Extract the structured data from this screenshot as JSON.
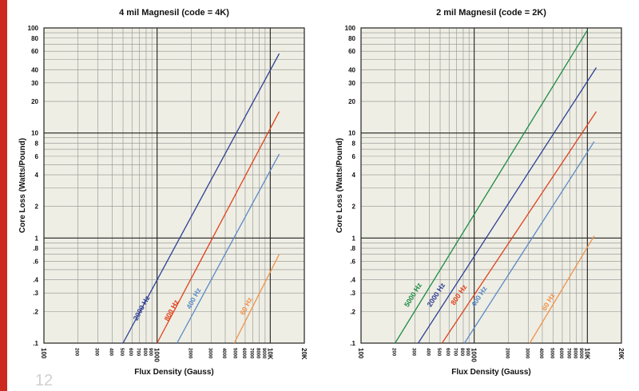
{
  "page": {
    "page_number": "12"
  },
  "colors": {
    "accent": "#cc2a1e",
    "plot_bg": "#eeeee4"
  },
  "chart_data": [
    {
      "type": "line",
      "title": "4 mil Magnesil (code = 4K)",
      "xlabel": "Flux Density (Gauss)",
      "ylabel": "Core Loss (Watts/Pound)",
      "x_scale": "log",
      "y_scale": "log",
      "xlim": [
        100,
        20000
      ],
      "ylim": [
        0.1,
        100
      ],
      "x_ticks": [
        {
          "v": 100,
          "t": "100"
        },
        {
          "v": 200,
          "t": "200"
        },
        {
          "v": 300,
          "t": "300"
        },
        {
          "v": 400,
          "t": "400"
        },
        {
          "v": 500,
          "t": "500"
        },
        {
          "v": 600,
          "t": "600"
        },
        {
          "v": 700,
          "t": "700"
        },
        {
          "v": 800,
          "t": "800"
        },
        {
          "v": 900,
          "t": "900"
        },
        {
          "v": 1000,
          "t": "1000"
        },
        {
          "v": 2000,
          "t": "2000"
        },
        {
          "v": 3000,
          "t": "3000"
        },
        {
          "v": 4000,
          "t": "4000"
        },
        {
          "v": 5000,
          "t": "5000"
        },
        {
          "v": 6000,
          "t": "6000"
        },
        {
          "v": 7000,
          "t": "7000"
        },
        {
          "v": 8000,
          "t": "8000"
        },
        {
          "v": 9000,
          "t": "9000"
        },
        {
          "v": 10000,
          "t": "10K"
        },
        {
          "v": 20000,
          "t": "20K"
        }
      ],
      "y_ticks": [
        {
          "v": 0.1,
          "t": ".1"
        },
        {
          "v": 0.2,
          "t": ".2"
        },
        {
          "v": 0.3,
          "t": ".3"
        },
        {
          "v": 0.4,
          "t": ".4"
        },
        {
          "v": 0.6,
          "t": ".6"
        },
        {
          "v": 0.8,
          "t": ".8"
        },
        {
          "v": 1,
          "t": "1"
        },
        {
          "v": 2,
          "t": "2"
        },
        {
          "v": 4,
          "t": "4"
        },
        {
          "v": 6,
          "t": "6"
        },
        {
          "v": 8,
          "t": "8"
        },
        {
          "v": 10,
          "t": "10"
        },
        {
          "v": 20,
          "t": "20"
        },
        {
          "v": 30,
          "t": "30"
        },
        {
          "v": 40,
          "t": "40"
        },
        {
          "v": 60,
          "t": "60"
        },
        {
          "v": 80,
          "t": "80"
        },
        {
          "v": 100,
          "t": "100"
        }
      ],
      "series": [
        {
          "name": "2000 Hz",
          "color": "#2e3f94",
          "x": [
            500,
            12000
          ],
          "y": [
            0.1,
            57
          ],
          "label_at": [
            760,
            0.21
          ]
        },
        {
          "name": "800 Hz",
          "color": "#e0421c",
          "x": [
            1000,
            12000
          ],
          "y": [
            0.1,
            16
          ],
          "label_at": [
            1400,
            0.2
          ]
        },
        {
          "name": "400 Hz",
          "color": "#5b89c6",
          "x": [
            1500,
            12000
          ],
          "y": [
            0.1,
            6.3
          ],
          "label_at": [
            2200,
            0.26
          ]
        },
        {
          "name": "60 Hz",
          "color": "#f0924a",
          "x": [
            4800,
            12000
          ],
          "y": [
            0.1,
            0.7
          ],
          "label_at": [
            6400,
            0.22
          ]
        }
      ]
    },
    {
      "type": "line",
      "title": "2 mil Magnesil (code = 2K)",
      "xlabel": "Flux Density (Gauss)",
      "ylabel": "Core Loss (Watts/Pound)",
      "x_scale": "log",
      "y_scale": "log",
      "xlim": [
        100,
        20000
      ],
      "ylim": [
        0.1,
        100
      ],
      "x_ticks": [
        {
          "v": 100,
          "t": "100"
        },
        {
          "v": 200,
          "t": "200"
        },
        {
          "v": 300,
          "t": "300"
        },
        {
          "v": 400,
          "t": "400"
        },
        {
          "v": 500,
          "t": "500"
        },
        {
          "v": 600,
          "t": "600"
        },
        {
          "v": 700,
          "t": "700"
        },
        {
          "v": 800,
          "t": "800"
        },
        {
          "v": 900,
          "t": "900"
        },
        {
          "v": 1000,
          "t": "1000"
        },
        {
          "v": 2000,
          "t": "2000"
        },
        {
          "v": 3000,
          "t": "3000"
        },
        {
          "v": 4000,
          "t": "4000"
        },
        {
          "v": 5000,
          "t": "5000"
        },
        {
          "v": 6000,
          "t": "6000"
        },
        {
          "v": 7000,
          "t": "7000"
        },
        {
          "v": 8000,
          "t": "8000"
        },
        {
          "v": 9000,
          "t": "9000"
        },
        {
          "v": 10000,
          "t": "10K"
        },
        {
          "v": 20000,
          "t": "20K"
        }
      ],
      "y_ticks": [
        {
          "v": 0.1,
          "t": ".1"
        },
        {
          "v": 0.2,
          "t": ".2"
        },
        {
          "v": 0.3,
          "t": ".3"
        },
        {
          "v": 0.4,
          "t": ".4"
        },
        {
          "v": 0.6,
          "t": ".6"
        },
        {
          "v": 0.8,
          "t": ".8"
        },
        {
          "v": 1,
          "t": "1"
        },
        {
          "v": 2,
          "t": "2"
        },
        {
          "v": 4,
          "t": "4"
        },
        {
          "v": 6,
          "t": "6"
        },
        {
          "v": 8,
          "t": "8"
        },
        {
          "v": 10,
          "t": "10"
        },
        {
          "v": 20,
          "t": "20"
        },
        {
          "v": 30,
          "t": "30"
        },
        {
          "v": 40,
          "t": "40"
        },
        {
          "v": 60,
          "t": "60"
        },
        {
          "v": 80,
          "t": "80"
        },
        {
          "v": 100,
          "t": "100"
        }
      ],
      "series": [
        {
          "name": "5000 Hz",
          "color": "#1e8a43",
          "x": [
            200,
            10000
          ],
          "y": [
            0.1,
            95
          ],
          "label_at": [
            300,
            0.28
          ]
        },
        {
          "name": "2000 Hz",
          "color": "#2e3f94",
          "x": [
            320,
            12000
          ],
          "y": [
            0.1,
            42
          ],
          "label_at": [
            480,
            0.28
          ]
        },
        {
          "name": "800 Hz",
          "color": "#e0421c",
          "x": [
            520,
            12000
          ],
          "y": [
            0.1,
            16
          ],
          "label_at": [
            760,
            0.28
          ]
        },
        {
          "name": "400 Hz",
          "color": "#5b89c6",
          "x": [
            820,
            11500
          ],
          "y": [
            0.1,
            8.3
          ],
          "label_at": [
            1150,
            0.27
          ]
        },
        {
          "name": "60 Hz",
          "color": "#f0924a",
          "x": [
            3100,
            11500
          ],
          "y": [
            0.1,
            1.05
          ],
          "label_at": [
            4700,
            0.24
          ]
        }
      ]
    }
  ]
}
